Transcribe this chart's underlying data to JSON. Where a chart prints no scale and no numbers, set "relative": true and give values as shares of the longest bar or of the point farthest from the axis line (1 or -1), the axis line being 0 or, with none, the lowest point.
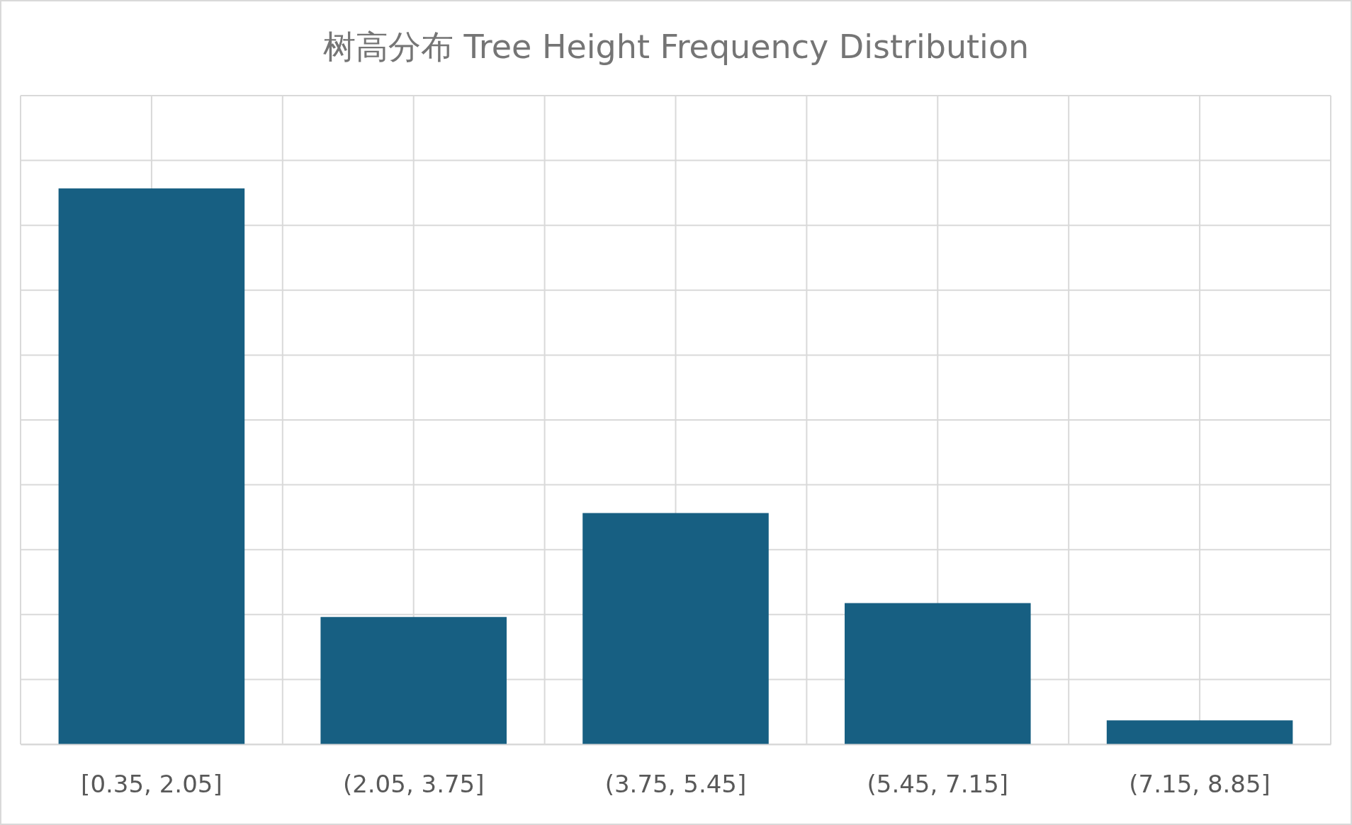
{
  "chart_data": {
    "type": "bar",
    "title": "树高分布 Tree Height Frequency Distribution",
    "categories": [
      "[0.35, 2.05]",
      "(2.05, 3.75]",
      "(3.75, 5.45]",
      "(5.45, 7.15]",
      "(7.15, 8.85]"
    ],
    "values": [
      1,
      0.229,
      0.416,
      0.254,
      0.043
    ],
    "color": "#175f82",
    "relative": true,
    "grid": true
  }
}
